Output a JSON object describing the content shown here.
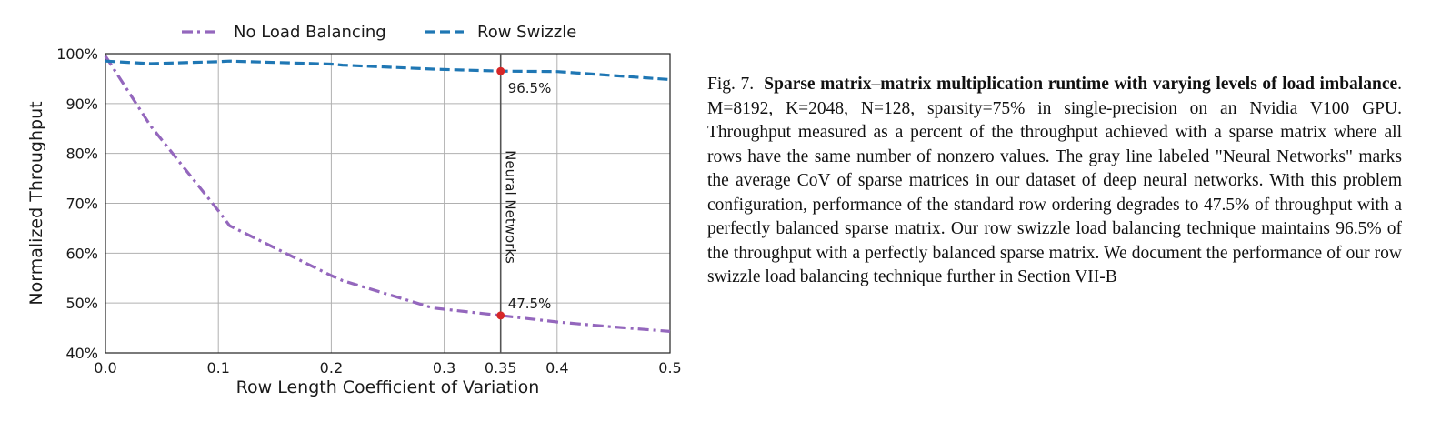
{
  "chart_data": {
    "type": "line",
    "xlabel": "Row Length Coefficient of Variation",
    "ylabel": "Normalized Throughput",
    "xlim": [
      0.0,
      0.5
    ],
    "ylim": [
      40,
      100
    ],
    "xticks": [
      "0.0",
      "0.1",
      "0.2",
      "0.3",
      "0.35",
      "0.4",
      "0.5"
    ],
    "xtick_values": [
      0.0,
      0.1,
      0.2,
      0.3,
      0.35,
      0.4,
      0.5
    ],
    "yticks": [
      "40%",
      "50%",
      "60%",
      "70%",
      "80%",
      "90%",
      "100%"
    ],
    "ytick_values": [
      40,
      50,
      60,
      70,
      80,
      90,
      100
    ],
    "grid": true,
    "legend_position": "top",
    "series": [
      {
        "name": "No Load Balancing",
        "color": "#9467bd",
        "style": "dash-dot",
        "x": [
          0.0,
          0.04,
          0.1,
          0.11,
          0.2,
          0.21,
          0.29,
          0.35,
          0.4,
          0.45,
          0.5
        ],
        "y": [
          99.5,
          85.5,
          68.5,
          65.5,
          55.5,
          54.5,
          49.0,
          47.5,
          46.2,
          45.2,
          44.3
        ]
      },
      {
        "name": "Row Swizzle",
        "color": "#1f77b4",
        "style": "dashed",
        "x": [
          0.0,
          0.04,
          0.1,
          0.11,
          0.2,
          0.21,
          0.29,
          0.35,
          0.4,
          0.45,
          0.5
        ],
        "y": [
          98.5,
          98.0,
          98.4,
          98.5,
          97.9,
          97.7,
          96.9,
          96.5,
          96.4,
          95.6,
          94.8
        ]
      }
    ],
    "vertical_line": {
      "x": 0.35,
      "label": "Neural Networks",
      "color": "#808080"
    },
    "annotations": [
      {
        "x": 0.35,
        "y": 96.5,
        "label": "96.5%",
        "color": "#d62728"
      },
      {
        "x": 0.35,
        "y": 47.5,
        "label": "47.5%",
        "color": "#d62728"
      }
    ]
  },
  "caption": {
    "prefix": "Fig. 7.",
    "title": "Sparse matrix–matrix multiplication runtime with varying levels of load imbalance",
    "body": ". M=8192, K=2048, N=128, sparsity=75% in single-precision on an Nvidia V100 GPU. Throughput measured as a percent of the throughput achieved with a sparse matrix where all rows have the same number of nonzero values. The gray line labeled \"Neural Networks\" marks the average CoV of sparse matrices in our dataset of deep neural networks. With this problem configuration, performance of the standard row ordering degrades to 47.5% of throughput with a perfectly balanced sparse matrix. Our row swizzle load balancing technique maintains 96.5% of the throughput with a perfectly balanced sparse matrix. We document the performance of our row swizzle load balancing technique further in Section VII-B"
  }
}
